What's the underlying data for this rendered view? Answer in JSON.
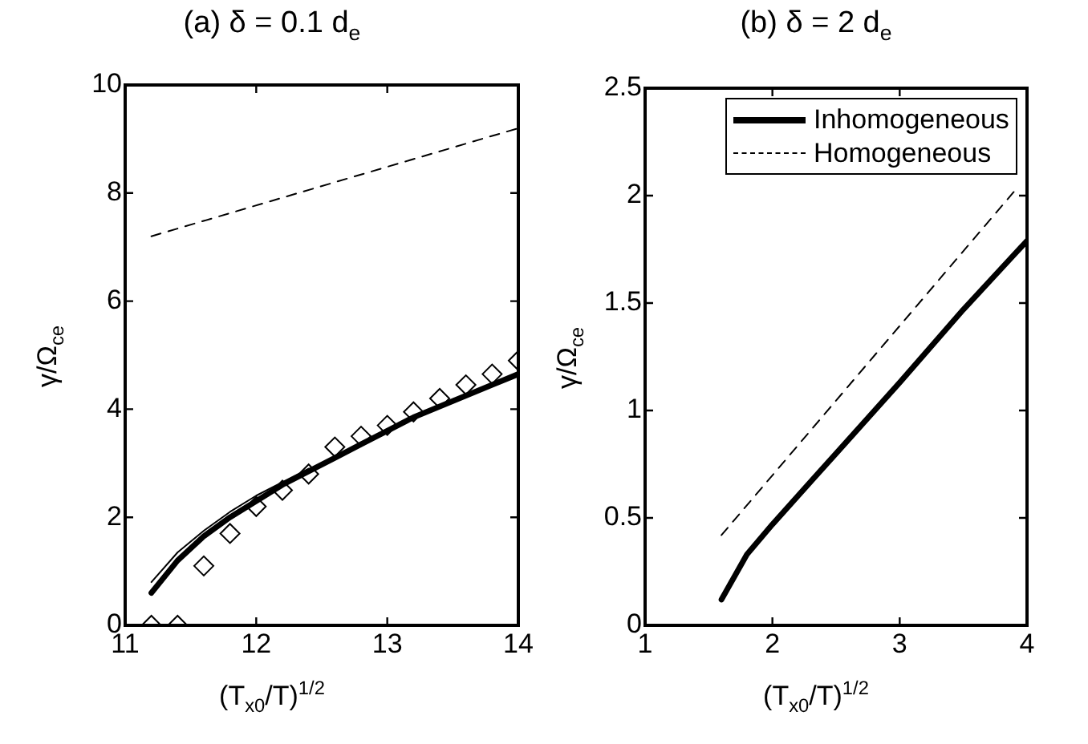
{
  "chart_data": [
    {
      "type": "line",
      "title": "(a)    δ = 0.1 d$_{e}$",
      "xlabel": "(T$_{x0}$/T)$^{1/2}$",
      "ylabel": "γ/Ω$_{ce}$",
      "xlim": [
        11,
        14
      ],
      "ylim": [
        0,
        10
      ],
      "xticks": [
        11,
        12,
        13,
        14
      ],
      "yticks": [
        0,
        2,
        4,
        6,
        8,
        10
      ],
      "grid": false,
      "series": [
        {
          "color": "#000000",
          "line_style": "solid",
          "marker": "none",
          "x": [
            11.2,
            11.4,
            11.6,
            11.8,
            12,
            12.2,
            12.4,
            12.6,
            12.8,
            13,
            13.2,
            13.4,
            13.6,
            13.8,
            14
          ],
          "values": [
            0.6,
            1.2,
            1.65,
            2.0,
            2.3,
            2.6,
            2.85,
            3.1,
            3.35,
            3.6,
            3.85,
            4.05,
            4.25,
            4.45,
            4.65
          ]
        },
        {
          "color": "#000000",
          "line_style": "solid",
          "marker": "none",
          "x": [
            11.2,
            11.4,
            11.6,
            11.8,
            12,
            12.2,
            12.4
          ],
          "values": [
            0.8,
            1.35,
            1.75,
            2.1,
            2.4,
            2.65,
            2.9
          ]
        },
        {
          "color": "#000000",
          "line_style": "dashed",
          "marker": "none",
          "x": [
            11.2,
            14
          ],
          "values": [
            7.2,
            9.2
          ]
        },
        {
          "type": "scatter",
          "color": "#000000",
          "marker": "diamond",
          "x": [
            11.2,
            11.4,
            11.6,
            11.8,
            12,
            12.2,
            12.4,
            12.6,
            12.8,
            13,
            13.2,
            13.4,
            13.6,
            13.8,
            14
          ],
          "values": [
            0,
            0,
            1.1,
            1.7,
            2.2,
            2.5,
            2.8,
            3.3,
            3.5,
            3.7,
            3.95,
            4.2,
            4.45,
            4.65,
            4.9
          ]
        }
      ]
    },
    {
      "type": "line",
      "title": "(b)    δ = 2 d$_{e}$",
      "xlabel": "(T$_{x0}$/T)$^{1/2}$",
      "ylabel": "γ/Ω$_{ce}$",
      "xlim": [
        1,
        4
      ],
      "ylim": [
        0,
        2.5
      ],
      "xticks": [
        1,
        2,
        3,
        4
      ],
      "yticks": [
        0,
        0.5,
        1,
        1.5,
        2,
        2.5
      ],
      "grid": false,
      "legend": "top right",
      "series": [
        {
          "name": "Inhomogeneous",
          "color": "#000000",
          "line_style": "solid",
          "marker": "none",
          "x": [
            1.6,
            1.8,
            2,
            2.5,
            3,
            3.5,
            4
          ],
          "values": [
            0.12,
            0.33,
            0.47,
            0.8,
            1.13,
            1.47,
            1.79
          ]
        },
        {
          "name": "Homogeneous",
          "color": "#000000",
          "line_style": "dashed",
          "marker": "none",
          "x": [
            1.6,
            3.9
          ],
          "values": [
            0.42,
            2.02
          ]
        }
      ]
    }
  ]
}
